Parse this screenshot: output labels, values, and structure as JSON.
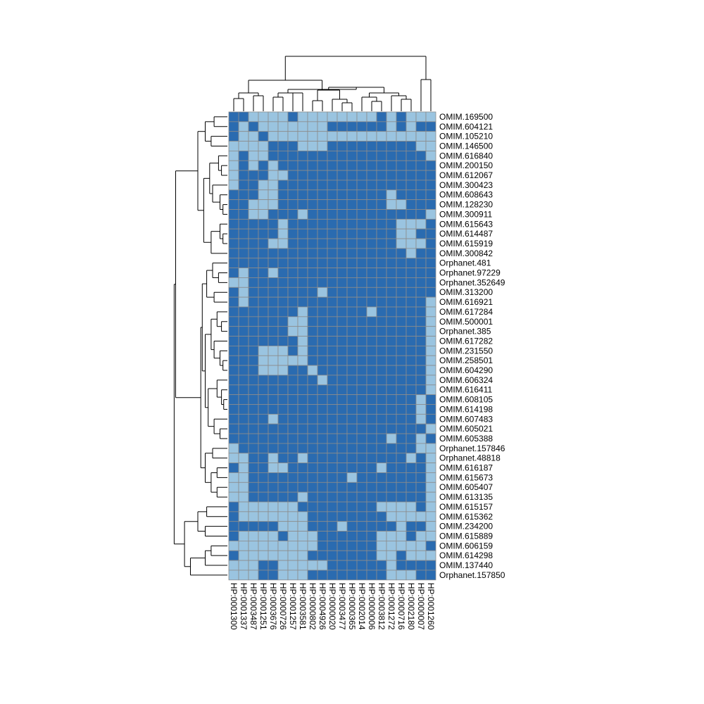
{
  "chart_data": {
    "type": "heatmap",
    "title": "",
    "xlabel": "",
    "ylabel": "",
    "legend": "none",
    "colors": {
      "high": "#2a6bb0",
      "low": "#9ac4e0",
      "grid": "#8c8c8c",
      "dendrogram": "#000000"
    },
    "value_meaning": "1 = dark blue cell, 0 = light blue cell",
    "columns": [
      "HP:0001300",
      "HP:0001337",
      "HP:0003487",
      "HP:0001251",
      "HP:0003676",
      "HP:0000726",
      "HP:0001257",
      "HP:0003581",
      "HP:0000802",
      "HP:0004926",
      "HP:0000020",
      "HP:0003477",
      "HP:0000365",
      "HP:0002014",
      "HP:0000006",
      "HP:0003812",
      "HP:0001272",
      "HP:0000716",
      "HP:0002180",
      "HP:0000007",
      "HP:0001260"
    ],
    "rows": [
      "OMIM.169500",
      "OMIM.604121",
      "OMIM.105210",
      "OMIM.146500",
      "OMIM.616840",
      "OMIM.200150",
      "OMIM.612067",
      "OMIM.300423",
      "OMIM.608643",
      "OMIM.128230",
      "OMIM.300911",
      "OMIM.615643",
      "OMIM.614487",
      "OMIM.615919",
      "OMIM.300842",
      "Orphanet.481",
      "Orphanet.97229",
      "Orphanet.352649",
      "OMIM.313200",
      "OMIM.616921",
      "OMIM.617284",
      "OMIM.500001",
      "Orphanet.385",
      "OMIM.617282",
      "OMIM.231550",
      "OMIM.258501",
      "OMIM.604290",
      "OMIM.606324",
      "OMIM.616411",
      "OMIM.608105",
      "OMIM.614198",
      "OMIM.607483",
      "OMIM.605021",
      "OMIM.605388",
      "Orphanet.157846",
      "Orphanet.48818",
      "OMIM.616187",
      "OMIM.615673",
      "OMIM.605407",
      "OMIM.613135",
      "OMIM.615157",
      "OMIM.615362",
      "OMIM.234200",
      "OMIM.615889",
      "OMIM.606159",
      "OMIM.614298",
      "OMIM.137440",
      "Orphanet.157850"
    ],
    "matrix": [
      "110000100000000101000",
      "101000000011111101011",
      "100100000000000000000",
      "000011100011111111100",
      "010011111111111111110",
      "010101111111111111111",
      "011100111111111111111",
      "011001111111111111111",
      "111001111111111101111",
      "110001111111111100111",
      "110011101111111111110",
      "111110111111111110001",
      "111110111111111110011",
      "111100111111111110001",
      "111111111111111111011",
      "111111111111111111111",
      "101101111111111111111",
      "001111111111111111111",
      "101111111011111111111",
      "101111111111111111110",
      "111111101111110111110",
      "111111001111111111110",
      "111111001111111111110",
      "111111101111111111110",
      "111000101111111111110",
      "111000001111111111110",
      "111000110111111111110",
      "111111111011111111110",
      "111111111111111111110",
      "111111111111111111101",
      "111111111111111111101",
      "111101111111111111101",
      "111111111111111111110",
      "111111111111111101101",
      "011111111111111111100",
      "001101101111111111010",
      "101100111111111011110",
      "001111111111011111110",
      "001111111111111111110",
      "001111101111111111110",
      "100000011111111000010",
      "100000001111111100000",
      "111110001110111110110",
      "100001000111111000100",
      "000000000111111000001",
      "100000001111111001000",
      "000110000011111101111",
      "000110001111111100011"
    ],
    "row_dendrogram": "present (left)",
    "column_dendrogram": "present (top)"
  }
}
